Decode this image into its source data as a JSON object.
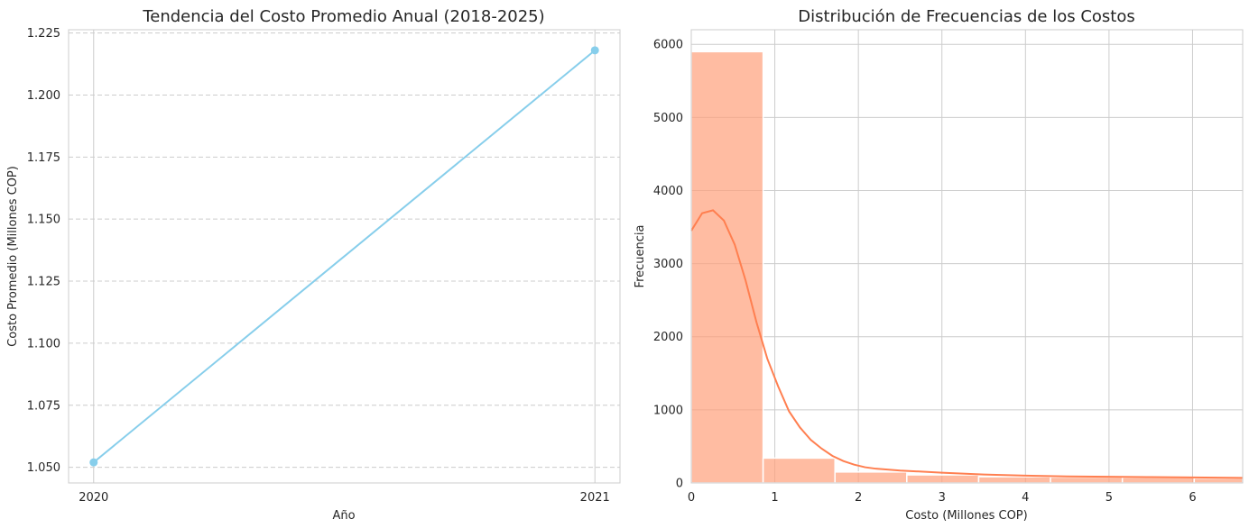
{
  "chart_data": [
    {
      "type": "line",
      "title": "Tendencia del Costo Promedio Anual (2018-2025)",
      "xlabel": "Año",
      "ylabel": "Costo Promedio (Millones COP)",
      "x": [
        2020,
        2021
      ],
      "series": [
        {
          "values": [
            1.052,
            1.218
          ],
          "color": "#87CEEB",
          "marker": "circle"
        }
      ],
      "xticks": [
        "2020",
        "2021"
      ],
      "yticks": [
        "1.050",
        "1.075",
        "1.100",
        "1.125",
        "1.150",
        "1.175",
        "1.200",
        "1.225"
      ],
      "xlim": [
        2019.95,
        2021.05
      ],
      "ylim": [
        1.0437,
        1.2263
      ],
      "grid": "dashed-horizontal"
    },
    {
      "type": "bar",
      "subtype": "histogram",
      "title": "Distribución de Frecuencias de los Costos",
      "xlabel": "Costo (Millones COP)",
      "ylabel": "Frecuencia",
      "bin_edges": [
        0,
        0.86,
        1.72,
        2.58,
        3.44,
        4.3,
        5.16,
        6.02,
        6.88
      ],
      "values": [
        5900,
        340,
        150,
        110,
        85,
        80,
        75,
        65
      ],
      "bar_color": "#FFA07A",
      "kde": {
        "x": [
          0,
          0.13,
          0.26,
          0.39,
          0.52,
          0.65,
          0.78,
          0.91,
          1.04,
          1.17,
          1.3,
          1.43,
          1.56,
          1.69,
          1.82,
          1.95,
          2.08,
          2.21,
          2.5,
          3.0,
          3.5,
          4.0,
          4.5,
          5.0,
          5.5,
          6.0,
          6.6
        ],
        "y": [
          3450,
          3690,
          3730,
          3590,
          3260,
          2770,
          2200,
          1700,
          1320,
          980,
          760,
          590,
          470,
          370,
          300,
          250,
          215,
          195,
          170,
          140,
          115,
          100,
          90,
          85,
          80,
          75,
          70
        ],
        "color": "#FF7F50"
      },
      "xticks": [
        "0",
        "1",
        "2",
        "3",
        "4",
        "5",
        "6"
      ],
      "yticks": [
        "0",
        "1000",
        "2000",
        "3000",
        "4000",
        "5000",
        "6000"
      ],
      "xlim": [
        0,
        6.6
      ],
      "ylim": [
        0,
        6200
      ],
      "grid": "solid-both"
    }
  ]
}
